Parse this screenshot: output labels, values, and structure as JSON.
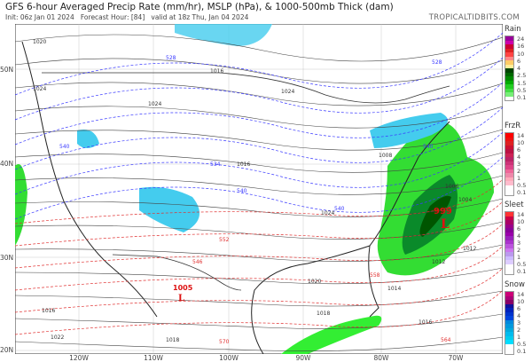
{
  "header": {
    "title": "GFS 6-hour Averaged Precip Rate (mm/hr), MSLP (hPa), & 1000-500mb Thick (dam)",
    "init": "Init: 06z Jan 01 2024",
    "forecast_hour": "Forecast Hour: [84]",
    "valid": "valid at 18z Thu, Jan 04 2024",
    "brand": "TROPICALTIDBITS.COM"
  },
  "axes": {
    "lat_labels": [
      "50N",
      "40N",
      "30N",
      "20N"
    ],
    "lon_labels": [
      "120W",
      "110W",
      "100W",
      "90W",
      "80W",
      "70W"
    ]
  },
  "map": {
    "low_center": {
      "symbol": "L",
      "pressure": "999"
    },
    "mexico_low": {
      "symbol": "L",
      "pressure": "1005"
    },
    "isobar_labels": [
      "1020",
      "1024",
      "1016",
      "1024",
      "1024",
      "1016",
      "1008",
      "1012",
      "1024",
      "1020",
      "1016",
      "1018",
      "1022",
      "1018",
      "1014",
      "1012",
      "1016",
      "1006",
      "1004"
    ],
    "thickness_labels": [
      "528",
      "540",
      "540",
      "540",
      "546",
      "552",
      "558",
      "564",
      "570",
      "534",
      "528",
      "540"
    ],
    "colors": {
      "land": "#ffffff",
      "borders": "#888888",
      "isobars": "#333333",
      "thickness_cold": "#3a3aff",
      "thickness_warm": "#e03030",
      "rain_light": "#22dd22",
      "rain_heavy": "#006600",
      "snow": "#33ccee"
    }
  },
  "legends": [
    {
      "name": "Rain",
      "levels": [
        "24",
        "16",
        "10",
        "6",
        "4",
        "2.5",
        "1.5",
        "0.5",
        "0.1"
      ],
      "colors": [
        "#990099",
        "#cc00aa",
        "#cc0033",
        "#dd2222",
        "#ff4444",
        "#ff8888",
        "#ffcc66",
        "#ffee99",
        "#004400",
        "#006600",
        "#008800",
        "#00aa00",
        "#22cc22",
        "#44dd44",
        "#77ee77",
        "#ffffff"
      ]
    },
    {
      "name": "FrzR",
      "levels": [
        "14",
        "10",
        "6",
        "4",
        "3",
        "2",
        "1",
        "0.5",
        "0.1"
      ],
      "colors": [
        "#ff0000",
        "#ee1111",
        "#dd2222",
        "#cc1133",
        "#bb1144",
        "#cc2255",
        "#bb2266",
        "#cc3377",
        "#dd4488",
        "#ee6699",
        "#ee88aa",
        "#ffaabb",
        "#ffbbcc",
        "#ffffff"
      ]
    },
    {
      "name": "Sleet",
      "levels": [
        "14",
        "10",
        "6",
        "4",
        "3",
        "2",
        "1",
        "0.5",
        "0.1"
      ],
      "colors": [
        "#ff3333",
        "#cc0044",
        "#aa0066",
        "#990088",
        "#880099",
        "#9900aa",
        "#9922bb",
        "#aa33cc",
        "#bb55dd",
        "#cc77ee",
        "#bb99ee",
        "#ccbbff",
        "#ddccff",
        "#ffffff"
      ]
    },
    {
      "name": "Snow",
      "levels": [
        "14",
        "10",
        "6",
        "4",
        "3",
        "2",
        "1",
        "0.5",
        "0.1"
      ],
      "colors": [
        "#cc0077",
        "#aa0077",
        "#880066",
        "#111199",
        "#0022bb",
        "#0033cc",
        "#0044dd",
        "#0088dd",
        "#0099dd",
        "#00aadd",
        "#00bbee",
        "#00ccee",
        "#00ddff",
        "#ffffff"
      ]
    }
  ]
}
